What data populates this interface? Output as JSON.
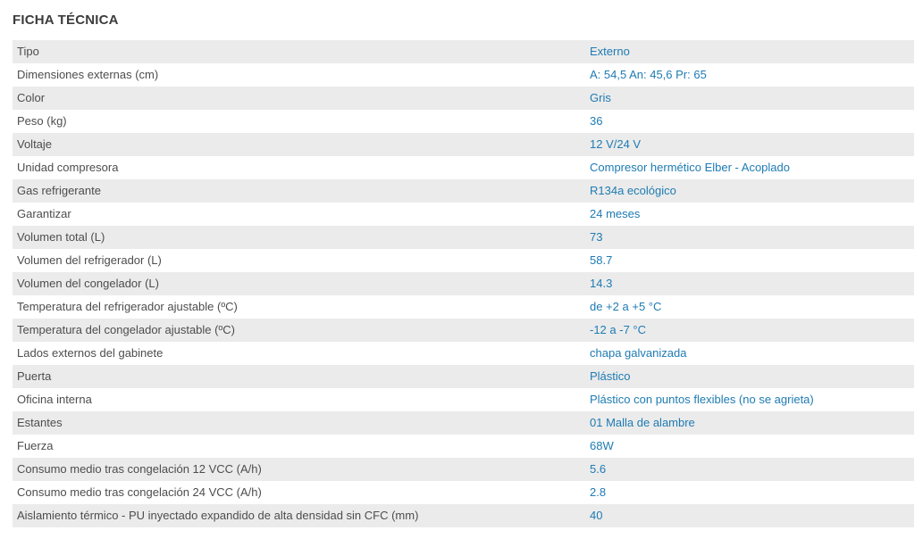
{
  "page_title": "FICHA TÉCNICA",
  "theme": {
    "background": "#ffffff",
    "heading_color": "#3c3c3c",
    "label_color": "#4d4d4d",
    "value_color": "#1e7bb3",
    "row_stripe_color": "#ebebeb"
  },
  "table": {
    "rows": [
      {
        "label": "Tipo",
        "value": "Externo"
      },
      {
        "label": "Dimensiones externas (cm)",
        "value": "A: 54,5 An: 45,6 Pr: 65"
      },
      {
        "label": "Color",
        "value": "Gris"
      },
      {
        "label": "Peso (kg)",
        "value": "36"
      },
      {
        "label": "Voltaje",
        "value": "12 V/24 V"
      },
      {
        "label": "Unidad compresora",
        "value": "Compresor hermético Elber - Acoplado"
      },
      {
        "label": "Gas refrigerante",
        "value": "R134a ecológico"
      },
      {
        "label": "Garantizar",
        "value": "24 meses"
      },
      {
        "label": "Volumen total (L)",
        "value": "73"
      },
      {
        "label": "Volumen del refrigerador (L)",
        "value": "58.7"
      },
      {
        "label": "Volumen del congelador (L)",
        "value": "14.3"
      },
      {
        "label": "Temperatura del refrigerador ajustable (ºC)",
        "value": "de +2 a +5 °C"
      },
      {
        "label": "Temperatura del congelador ajustable (ºC)",
        "value": "-12 a -7 °C"
      },
      {
        "label": "Lados externos del gabinete",
        "value": "chapa galvanizada"
      },
      {
        "label": "Puerta",
        "value": "Plástico"
      },
      {
        "label": "Oficina interna",
        "value": "Plástico con puntos flexibles (no se agrieta)"
      },
      {
        "label": "Estantes",
        "value": "01 Malla de alambre"
      },
      {
        "label": "Fuerza",
        "value": "68W"
      },
      {
        "label": "Consumo medio tras congelación 12 VCC (A/h)",
        "value": "5.6"
      },
      {
        "label": "Consumo medio tras congelación 24 VCC (A/h)",
        "value": "2.8"
      },
      {
        "label": "Aislamiento térmico - PU inyectado expandido de alta densidad sin CFC (mm)",
        "value": "40"
      }
    ]
  }
}
